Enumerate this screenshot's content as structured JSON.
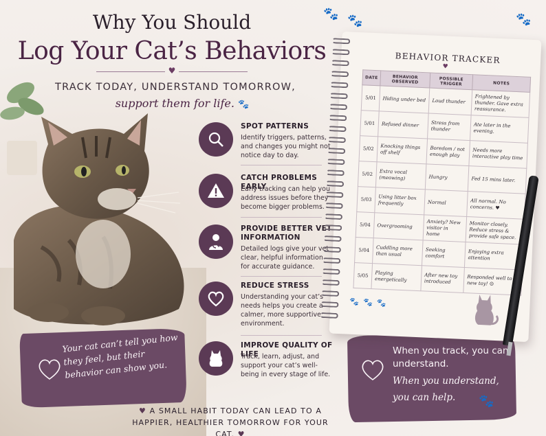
{
  "header": {
    "title_line1": "Why You Should",
    "title_line2": "Log Your Cat’s Behaviors",
    "tagline": "TRACK TODAY, UNDERSTAND TOMORROW,",
    "tagline_script": "support them for life."
  },
  "features": [
    {
      "icon": "magnifier-icon",
      "title": "SPOT PATTERNS",
      "desc": "Identify triggers, patterns, and changes you might not notice day to day."
    },
    {
      "icon": "warning-icon",
      "title": "CATCH PROBLEMS EARLY",
      "desc": "Early tracking can help you address issues before they become bigger problems."
    },
    {
      "icon": "vet-icon",
      "title": "PROVIDE BETTER VET INFORMATION",
      "desc": "Detailed logs give your vet clear, helpful information for accurate guidance."
    },
    {
      "icon": "heart-icon",
      "title": "REDUCE STRESS",
      "desc": "Understanding your cat’s needs helps you create a calmer, more supportive environment."
    },
    {
      "icon": "cat-icon",
      "title": "IMPROVE QUALITY OF LIFE",
      "desc": "Track, learn, adjust, and support your cat’s well-being in every stage of life."
    }
  ],
  "quote_left": "Your cat can’t tell you how they feel, but their behavior can show you.",
  "quote_right": {
    "line1": "When you track, you can understand.",
    "line2": "When you understand, you can help."
  },
  "footer": "A SMALL HABIT TODAY CAN LEAD TO A HAPPIER, HEALTHIER TOMORROW FOR YOUR CAT.",
  "tracker": {
    "title": "BEHAVIOR TRACKER",
    "columns": [
      "DATE",
      "BEHAVIOR OBSERVED",
      "POSSIBLE TRIGGER",
      "NOTES"
    ],
    "rows": [
      [
        "5/01",
        "Hiding under bed",
        "Loud thunder",
        "Frightened by thunder. Gave extra reassurance."
      ],
      [
        "5/01",
        "Refused dinner",
        "Stress from thunder",
        "Ate later in the evening."
      ],
      [
        "5/02",
        "Knocking things off shelf",
        "Boredom / not enough play",
        "Needs more interactive play time"
      ],
      [
        "5/02",
        "Extra vocal (meowing)",
        "Hungry",
        "Fed 15 mins later."
      ],
      [
        "5/03",
        "Using litter box frequently",
        "Normal",
        "All normal. No concerns. ♥"
      ],
      [
        "5/04",
        "Overgrooming",
        "Anxiety? New visitor in home",
        "Monitor closely. Reduce stress & provide safe space."
      ],
      [
        "5/04",
        "Cuddling more than usual",
        "Seeking comfort",
        "Enjoying extra attention"
      ],
      [
        "5/05",
        "Playing energetically",
        "After new toy introduced",
        "Responded well to new toy! ☺"
      ]
    ]
  },
  "colors": {
    "accent": "#5b3a55",
    "title": "#4a2444",
    "background": "#f3eeea"
  }
}
